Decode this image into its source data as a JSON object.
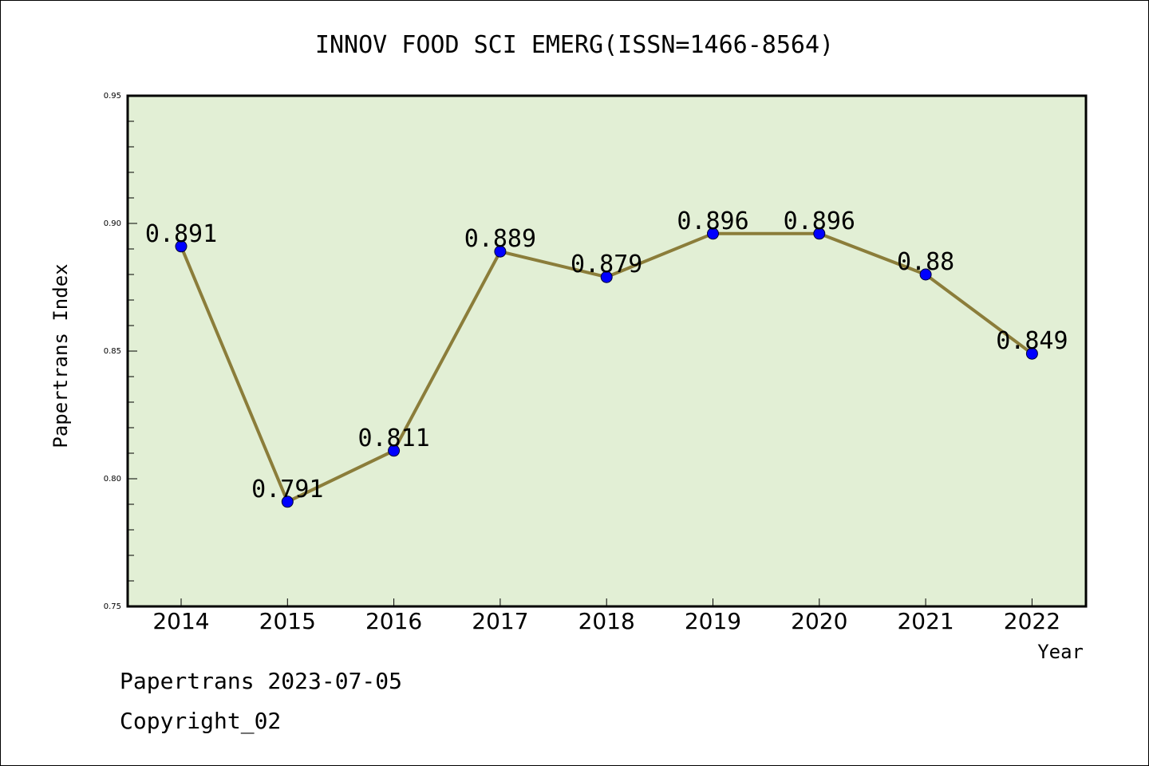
{
  "chart_data": {
    "type": "line",
    "title": "INNOV FOOD SCI EMERG(ISSN=1466-8564)",
    "xlabel": "Year",
    "ylabel": "Papertrans Index",
    "ylim": [
      0.75,
      0.95
    ],
    "yticks": [
      "0.75",
      "0.80",
      "0.85",
      "0.90",
      "0.95"
    ],
    "categories": [
      "2014",
      "2015",
      "2016",
      "2017",
      "2018",
      "2019",
      "2020",
      "2021",
      "2022"
    ],
    "values": [
      0.891,
      0.791,
      0.811,
      0.889,
      0.879,
      0.896,
      0.896,
      0.88,
      0.849
    ],
    "data_labels": [
      "0.891",
      "0.791",
      "0.811",
      "0.889",
      "0.879",
      "0.896",
      "0.896",
      "0.88",
      "0.849"
    ],
    "grid": false,
    "plot_background": "#e2efd5",
    "line_color": "#8b7d3a",
    "marker_color": "#0000ff"
  },
  "footer": {
    "line1": "Papertrans 2023-07-05",
    "line2": "Copyright_02"
  }
}
